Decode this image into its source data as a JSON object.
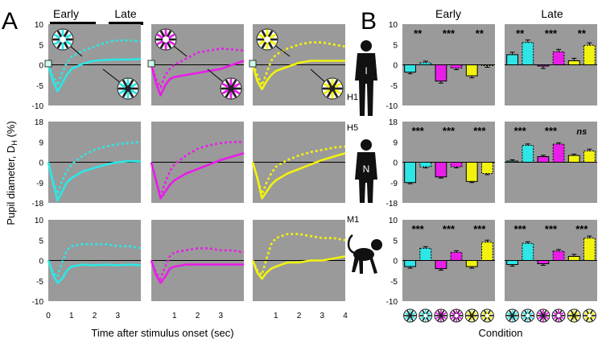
{
  "figure": {
    "panel_a_letter": "A",
    "panel_b_letter": "B",
    "period_early": "Early",
    "period_late": "Late",
    "a_ylabel_main": "Pupil diameter, D",
    "a_ylabel_sub": "H",
    "a_ylabel_unit": " (%)",
    "a_xlabel": "Time after stimulus onset (sec)",
    "b_xlabel": "Condition",
    "subject_labels": [
      "H1",
      "H5",
      "M1"
    ],
    "silhouette_letters": [
      "I",
      "N"
    ],
    "colors": {
      "cyan": "#2ee6e6",
      "magenta": "#e81ee8",
      "yellow": "#f2f20f",
      "panel_bg": "#9a9a9a"
    }
  },
  "chart_data": [
    {
      "type": "line",
      "panel": "A",
      "xlabel": "Time after stimulus onset (sec)",
      "ylabel": "Pupil diameter, DH (%)",
      "x_ticks": [
        0,
        1,
        2,
        3,
        4
      ],
      "rows": [
        {
          "subject": "H1",
          "ylim": [
            -10,
            10
          ],
          "y_ticks": [
            10,
            5,
            0,
            -5,
            -10
          ],
          "x": [
            0,
            0.2,
            0.4,
            0.6,
            0.8,
            1.0,
            1.5,
            2.0,
            2.5,
            3.0,
            3.5,
            4.0
          ],
          "series": [
            {
              "name": "cyan solid",
              "color": "cyan",
              "dashed": false,
              "values": [
                0,
                -4.0,
                -6.5,
                -4.5,
                -2.5,
                -1.0,
                0.3,
                1.0,
                1.2,
                1.3,
                1.3,
                1.4
              ]
            },
            {
              "name": "cyan dotted",
              "color": "cyan",
              "dashed": true,
              "values": [
                0,
                -2.8,
                -5.0,
                -2.0,
                0.5,
                2.0,
                3.5,
                4.5,
                5.5,
                6.0,
                6.0,
                5.8
              ]
            },
            {
              "name": "magenta solid",
              "color": "magenta",
              "dashed": false,
              "values": [
                0,
                -4.5,
                -7.5,
                -5.0,
                -3.5,
                -3.0,
                -2.5,
                -2.0,
                -1.5,
                -1.0,
                0,
                1.0
              ]
            },
            {
              "name": "magenta dotted",
              "color": "magenta",
              "dashed": true,
              "values": [
                0,
                -3.5,
                -5.5,
                -2.5,
                -1.0,
                0,
                1.5,
                3.0,
                3.5,
                4.0,
                3.8,
                3.5
              ]
            },
            {
              "name": "yellow solid",
              "color": "yellow",
              "dashed": false,
              "values": [
                0,
                -4.0,
                -6.0,
                -4.0,
                -2.5,
                -1.5,
                -0.5,
                0.5,
                1.0,
                1.0,
                1.0,
                1.0
              ]
            },
            {
              "name": "yellow dotted",
              "color": "yellow",
              "dashed": true,
              "values": [
                0,
                -2.5,
                -5.0,
                -2.0,
                1.0,
                2.5,
                4.0,
                5.0,
                5.5,
                5.5,
                5.0,
                4.5
              ]
            }
          ]
        },
        {
          "subject": "H5",
          "ylim": [
            -18,
            18
          ],
          "y_ticks": [
            18,
            9,
            0,
            -9,
            -18
          ],
          "x": [
            0,
            0.2,
            0.4,
            0.6,
            0.8,
            1.0,
            1.5,
            2.0,
            2.5,
            3.0,
            3.5,
            4.0
          ],
          "series": [
            {
              "name": "cyan solid",
              "color": "cyan",
              "dashed": false,
              "values": [
                0,
                -9,
                -17,
                -13,
                -9,
                -7,
                -4,
                -2.5,
                -1,
                0,
                0.5,
                0.3
              ]
            },
            {
              "name": "cyan dotted",
              "color": "cyan",
              "dashed": true,
              "values": [
                0,
                -8,
                -14,
                -8,
                -4,
                -1,
                3,
                5.5,
                7,
                8,
                8.5,
                9
              ]
            },
            {
              "name": "magenta solid",
              "color": "magenta",
              "dashed": false,
              "values": [
                0,
                -8,
                -16,
                -13,
                -10,
                -8,
                -5,
                -3,
                -1,
                1,
                2.5,
                4
              ]
            },
            {
              "name": "magenta dotted",
              "color": "magenta",
              "dashed": true,
              "values": [
                0,
                -8,
                -15,
                -9,
                -4,
                -1,
                3,
                6,
                7.5,
                8.5,
                9,
                9
              ]
            },
            {
              "name": "yellow solid",
              "color": "yellow",
              "dashed": false,
              "values": [
                0,
                -7,
                -16,
                -13,
                -10,
                -8,
                -5,
                -3,
                -1,
                1,
                2.5,
                4
              ]
            },
            {
              "name": "yellow dotted",
              "color": "yellow",
              "dashed": true,
              "values": [
                0,
                -7,
                -14,
                -9,
                -5,
                -2,
                1,
                3,
                4.5,
                5.5,
                6.5,
                7
              ]
            }
          ]
        },
        {
          "subject": "M1",
          "ylim": [
            -10,
            10
          ],
          "y_ticks": [
            10,
            5,
            0,
            -5,
            -10
          ],
          "x": [
            0,
            0.2,
            0.4,
            0.6,
            0.8,
            1.0,
            1.5,
            2.0,
            2.5,
            3.0,
            3.5,
            4.0
          ],
          "series": [
            {
              "name": "cyan solid",
              "color": "cyan",
              "dashed": false,
              "values": [
                0,
                -3.5,
                -5.5,
                -4.5,
                -2.5,
                -1.5,
                -1.0,
                -1.2,
                -1.0,
                -1.2,
                -1.0,
                -1.2
              ]
            },
            {
              "name": "cyan dotted",
              "color": "cyan",
              "dashed": true,
              "values": [
                0,
                -3.0,
                -4.0,
                -0.5,
                2.5,
                3.5,
                4.0,
                4.0,
                4.0,
                3.5,
                3.5,
                3.0
              ]
            },
            {
              "name": "magenta solid",
              "color": "magenta",
              "dashed": false,
              "values": [
                0,
                -3.5,
                -5.5,
                -4.0,
                -2.0,
                -1.5,
                -1.0,
                -1.0,
                -1.0,
                -1.0,
                -1.0,
                -1.0
              ]
            },
            {
              "name": "magenta dotted",
              "color": "magenta",
              "dashed": true,
              "values": [
                0,
                -3.0,
                -4.5,
                -1.5,
                1.0,
                2.0,
                2.5,
                3.0,
                3.0,
                2.5,
                2.5,
                2.0
              ]
            },
            {
              "name": "yellow solid",
              "color": "yellow",
              "dashed": false,
              "values": [
                0,
                -3.0,
                -4.5,
                -3.0,
                -2.0,
                -1.5,
                -0.5,
                -0.5,
                0,
                0,
                0.5,
                1.0
              ]
            },
            {
              "name": "yellow dotted",
              "color": "yellow",
              "dashed": true,
              "values": [
                0,
                -2.5,
                -3.5,
                0.5,
                4.0,
                5.5,
                6.5,
                6.5,
                6.0,
                5.5,
                5.5,
                5.0
              ]
            }
          ]
        }
      ]
    },
    {
      "type": "bar",
      "panel": "B",
      "xlabel": "Condition",
      "conditions": [
        "cyan, dark surround",
        "cyan, light surround",
        "magenta, dark surround",
        "magenta, light surround",
        "yellow, dark surround",
        "yellow, light surround"
      ],
      "condition_colors": [
        "cyan",
        "cyan",
        "magenta",
        "magenta",
        "yellow",
        "yellow"
      ],
      "condition_dashed": [
        false,
        true,
        false,
        true,
        false,
        true
      ],
      "rows": [
        {
          "subject": "H1",
          "ylim": [
            -10,
            10
          ],
          "y_ticks": [
            10,
            5,
            0,
            -5,
            -10
          ],
          "early": {
            "values": [
              -1.8,
              0.5,
              -4.0,
              -0.8,
              -2.7,
              -0.2
            ],
            "errors": [
              0.4,
              0.4,
              0.5,
              0.4,
              0.5,
              0.4
            ],
            "significance": [
              "**",
              "***",
              "**"
            ]
          },
          "late": {
            "values": [
              2.5,
              5.5,
              -0.3,
              3.2,
              1.0,
              4.8
            ],
            "errors": [
              0.6,
              0.6,
              0.6,
              0.6,
              0.6,
              0.6
            ],
            "significance": [
              "**",
              "***",
              "**"
            ]
          }
        },
        {
          "subject": "H5",
          "ylim": [
            -18,
            18
          ],
          "y_ticks": [
            18,
            9,
            0,
            -9,
            -18
          ],
          "early": {
            "values": [
              -9.0,
              -2.0,
              -6.5,
              -2.0,
              -8.5,
              -5.0
            ],
            "errors": [
              0.5,
              0.5,
              0.5,
              0.5,
              0.5,
              0.5
            ],
            "significance": [
              "***",
              "***",
              "***"
            ]
          },
          "late": {
            "values": [
              0.5,
              7.5,
              2.5,
              8.0,
              3.0,
              5.0
            ],
            "errors": [
              0.6,
              0.6,
              0.6,
              0.6,
              0.6,
              0.8
            ],
            "significance": [
              "***",
              "***",
              "ns"
            ]
          }
        },
        {
          "subject": "M1",
          "ylim": [
            -10,
            10
          ],
          "y_ticks": [
            10,
            5,
            0,
            -5,
            -10
          ],
          "early": {
            "values": [
              -1.5,
              3.0,
              -2.0,
              2.0,
              -1.5,
              4.5
            ],
            "errors": [
              0.4,
              0.4,
              0.4,
              0.4,
              0.4,
              0.5
            ],
            "significance": [
              "***",
              "***",
              "***"
            ]
          },
          "late": {
            "values": [
              -1.0,
              4.2,
              -0.8,
              2.3,
              1.0,
              5.5
            ],
            "errors": [
              0.4,
              0.4,
              0.4,
              0.4,
              0.5,
              0.5
            ],
            "significance": [
              "***",
              "***",
              "***"
            ]
          }
        }
      ]
    }
  ]
}
